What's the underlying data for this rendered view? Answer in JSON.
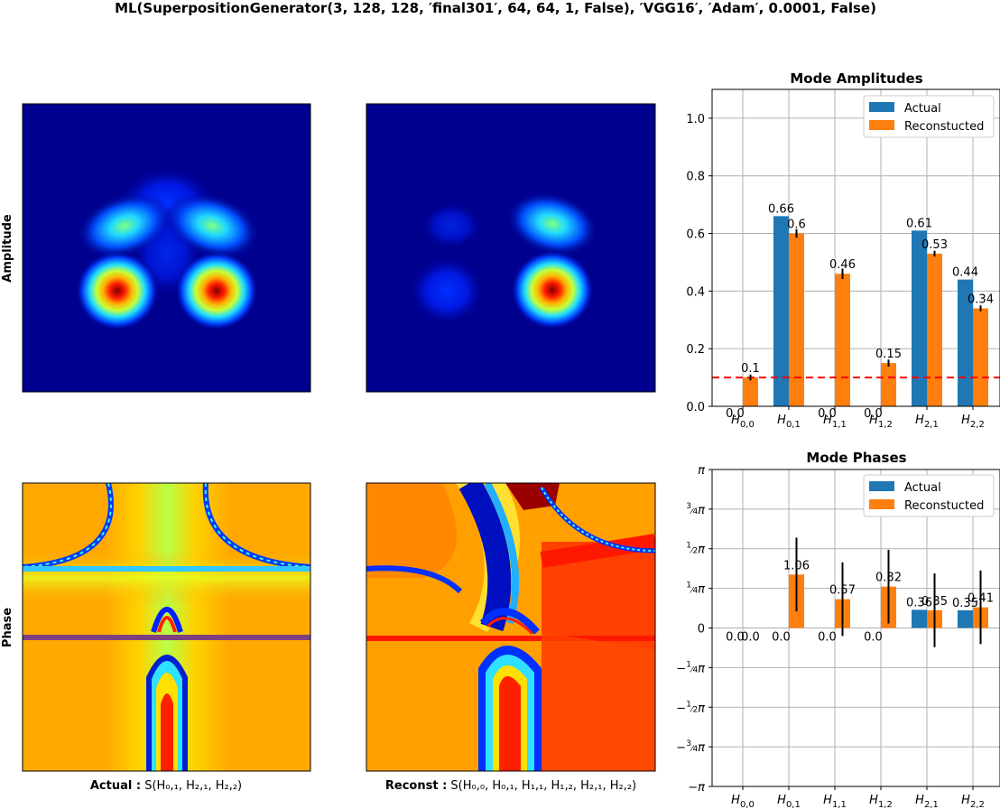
{
  "figure": {
    "suptitle": "ML(SuperpositionGenerator(3, 128, 128, ′final301′, 64, 64, 1, False), ′VGG16′, ′Adam′, 0.0001, False)",
    "row_labels": [
      "Amplitude",
      "Phase"
    ],
    "caption_actual_bold": "Actual :",
    "caption_actual_rest": "S(H₀,₁, H₂,₁, H₂,₂)",
    "caption_recon_bold": "Reconst :",
    "caption_recon_rest": "S(H₀,₀, H₀,₁, H₁,₁, H₁,₂, H₂,₁, H₂,₂)"
  },
  "colors": {
    "actual": "#1f77b4",
    "reconstructed": "#ff7f0e",
    "threshold": "#ff0000",
    "jet_background": "#00008f",
    "phase_background": "#ffa500"
  },
  "chart_data": [
    {
      "type": "bar",
      "title": "Mode Amplitudes",
      "categories": [
        "H0,0",
        "H0,1",
        "H1,1",
        "H1,2",
        "H2,1",
        "H2,2"
      ],
      "category_labels": [
        {
          "base": "H",
          "sub": "0,0"
        },
        {
          "base": "H",
          "sub": "0,1"
        },
        {
          "base": "H",
          "sub": "1,1"
        },
        {
          "base": "H",
          "sub": "1,2"
        },
        {
          "base": "H",
          "sub": "2,1"
        },
        {
          "base": "H",
          "sub": "2,2"
        }
      ],
      "series": [
        {
          "name": "Actual",
          "values": [
            0.0,
            0.66,
            0.0,
            0.0,
            0.61,
            0.44
          ],
          "labels": [
            "0.0",
            "0.66",
            "0.0",
            "0.0",
            "0.61",
            "0.44"
          ]
        },
        {
          "name": "Reconstucted",
          "values": [
            0.1,
            0.6,
            0.46,
            0.15,
            0.53,
            0.34
          ],
          "labels": [
            "0.1",
            "0.6",
            "0.46",
            "0.15",
            "0.53",
            "0.34"
          ],
          "errors": [
            0.01,
            0.015,
            0.018,
            0.012,
            0.01,
            0.01
          ]
        }
      ],
      "threshold": 0.1,
      "ylim": [
        0,
        1.1
      ],
      "yticks": [
        0,
        0.2,
        0.4,
        0.6,
        0.8,
        1.0
      ],
      "ytick_labels": [
        "0.0",
        "0.2",
        "0.4",
        "0.6",
        "0.8",
        "1.0"
      ],
      "grid": true,
      "legend": "upper right"
    },
    {
      "type": "bar",
      "title": "Mode Phases",
      "categories": [
        "H0,0",
        "H0,1",
        "H1,1",
        "H1,2",
        "H2,1",
        "H2,2"
      ],
      "category_labels": [
        {
          "base": "H",
          "sub": "0,0"
        },
        {
          "base": "H",
          "sub": "0,1"
        },
        {
          "base": "H",
          "sub": "1,1"
        },
        {
          "base": "H",
          "sub": "1,2"
        },
        {
          "base": "H",
          "sub": "2,1"
        },
        {
          "base": "H",
          "sub": "2,2"
        }
      ],
      "series": [
        {
          "name": "Actual",
          "values": [
            0.0,
            0.0,
            0.0,
            0.0,
            0.36,
            0.35
          ],
          "labels": [
            "0.0",
            "0.0",
            "0.0",
            "0.0",
            "0.36",
            "0.35"
          ]
        },
        {
          "name": "Reconstucted",
          "values": [
            0.0,
            1.06,
            0.57,
            0.82,
            0.35,
            0.41
          ],
          "labels": [
            "0.0",
            "1.06",
            "0.57",
            "0.82",
            "0.35",
            "0.41"
          ],
          "errors": [
            0,
            0.73,
            0.73,
            0.73,
            0.73,
            0.73
          ]
        }
      ],
      "ylim": [
        -3.14159,
        3.14159
      ],
      "yticks": [
        -3.14159,
        -2.35619,
        -1.5708,
        -0.7854,
        0,
        0.7854,
        1.5708,
        2.35619,
        3.14159
      ],
      "ytick_labels": [
        {
          "sign": "−",
          "frac": "",
          "sym": "π"
        },
        {
          "sign": "−",
          "frac": "3/4",
          "sym": "π"
        },
        {
          "sign": "−",
          "frac": "1/2",
          "sym": "π"
        },
        {
          "sign": "−",
          "frac": "1/4",
          "sym": "π"
        },
        {
          "sign": "",
          "frac": "",
          "sym": "0"
        },
        {
          "sign": "",
          "frac": "1/4",
          "sym": "π"
        },
        {
          "sign": "",
          "frac": "1/2",
          "sym": "π"
        },
        {
          "sign": "",
          "frac": "3/4",
          "sym": "π"
        },
        {
          "sign": "",
          "frac": "",
          "sym": "π"
        }
      ],
      "grid": true,
      "legend": "upper right"
    }
  ]
}
